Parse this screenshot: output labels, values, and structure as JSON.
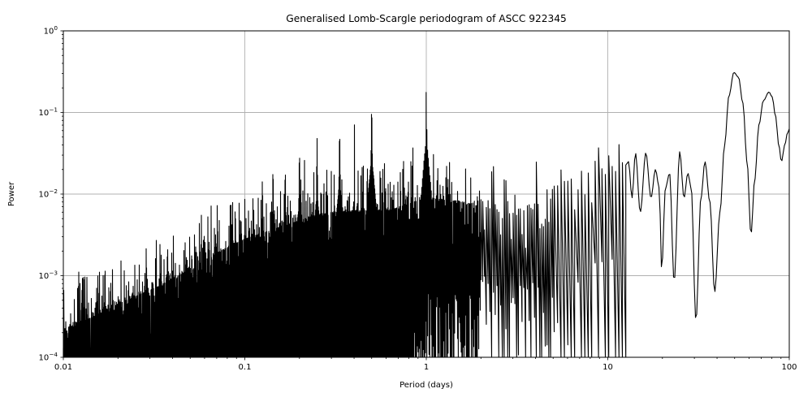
{
  "figure": {
    "title": "Generalised Lomb-Scargle periodogram of ASCC 922345",
    "xlabel": "Period (days)",
    "ylabel": "Power"
  },
  "chart_data": {
    "type": "line",
    "title": "Generalised Lomb-Scargle periodogram of ASCC 922345",
    "xlabel": "Period (days)",
    "ylabel": "Power",
    "xscale": "log",
    "yscale": "log",
    "xlim": [
      0.01,
      100
    ],
    "ylim": [
      0.0001,
      1
    ],
    "grid": true,
    "legend": "none",
    "line_color": "#000000",
    "grid_color": "#b0b0b0",
    "background_color": "#ffffff",
    "xtick_values": [
      0.01,
      0.1,
      1,
      10,
      100
    ],
    "xtick_labels": [
      "0.01",
      "0.1",
      "1",
      "10",
      "100"
    ],
    "ytick_exponents": [
      0,
      -1,
      -2,
      -3,
      -4
    ],
    "seed": 7,
    "noise_dex_amplitude": 0.55,
    "peak_shape": {
      "narrow_width_dex": 0.005,
      "wide_width_dex": 0.04,
      "wide_fraction": 0.2
    },
    "main_peaks": [
      [
        0.1,
        0.009
      ],
      [
        0.111,
        0.012
      ],
      [
        0.125,
        0.02
      ],
      [
        0.143,
        0.028
      ],
      [
        0.167,
        0.028
      ],
      [
        0.2,
        0.045
      ],
      [
        0.25,
        0.055
      ],
      [
        0.333,
        0.08
      ],
      [
        0.5,
        0.158
      ],
      [
        1.0,
        0.27
      ]
    ],
    "noise_envelope": [
      [
        0.01,
        0.00022
      ],
      [
        0.014,
        0.0003
      ],
      [
        0.02,
        0.00045
      ],
      [
        0.032,
        0.0007
      ],
      [
        0.05,
        0.0012
      ],
      [
        0.07,
        0.0019
      ],
      [
        0.1,
        0.0028
      ],
      [
        0.16,
        0.004
      ],
      [
        0.25,
        0.0056
      ],
      [
        0.4,
        0.0063
      ],
      [
        0.63,
        0.0063
      ],
      [
        1.0,
        0.009
      ],
      [
        1.6,
        0.008
      ],
      [
        2.8,
        0.0056
      ],
      [
        4.0,
        0.008
      ],
      [
        5.6,
        0.014
      ],
      [
        8.9,
        0.02
      ],
      [
        12.6,
        0.024
      ],
      [
        13.5,
        0.025
      ]
    ],
    "smooth_tail": [
      [
        13.0,
        0.025
      ],
      [
        13.6,
        0.009
      ],
      [
        14.2,
        0.032
      ],
      [
        15.1,
        0.006
      ],
      [
        16.2,
        0.032
      ],
      [
        17.3,
        0.009
      ],
      [
        18.3,
        0.02
      ],
      [
        19.2,
        0.012
      ],
      [
        19.8,
        0.0012
      ],
      [
        20.8,
        0.012
      ],
      [
        21.9,
        0.018
      ],
      [
        23.2,
        0.00085
      ],
      [
        24.9,
        0.033
      ],
      [
        26.3,
        0.009
      ],
      [
        27.6,
        0.018
      ],
      [
        28.8,
        0.012
      ],
      [
        30.6,
        0.00028
      ],
      [
        32.6,
        0.009
      ],
      [
        34.3,
        0.025
      ],
      [
        36.5,
        0.008
      ],
      [
        38.8,
        0.00063
      ],
      [
        41.5,
        0.006
      ],
      [
        44.0,
        0.04
      ],
      [
        46.5,
        0.16
      ],
      [
        49.5,
        0.31
      ],
      [
        52.5,
        0.27
      ],
      [
        55.5,
        0.13
      ],
      [
        58.5,
        0.025
      ],
      [
        61.5,
        0.0032
      ],
      [
        64.5,
        0.015
      ],
      [
        68.0,
        0.07
      ],
      [
        72.0,
        0.14
      ],
      [
        77.3,
        0.178
      ],
      [
        80.5,
        0.155
      ],
      [
        84.0,
        0.09
      ],
      [
        87.5,
        0.04
      ],
      [
        90.5,
        0.025
      ],
      [
        94.5,
        0.04
      ],
      [
        97.5,
        0.055
      ],
      [
        100.0,
        0.063
      ]
    ]
  }
}
